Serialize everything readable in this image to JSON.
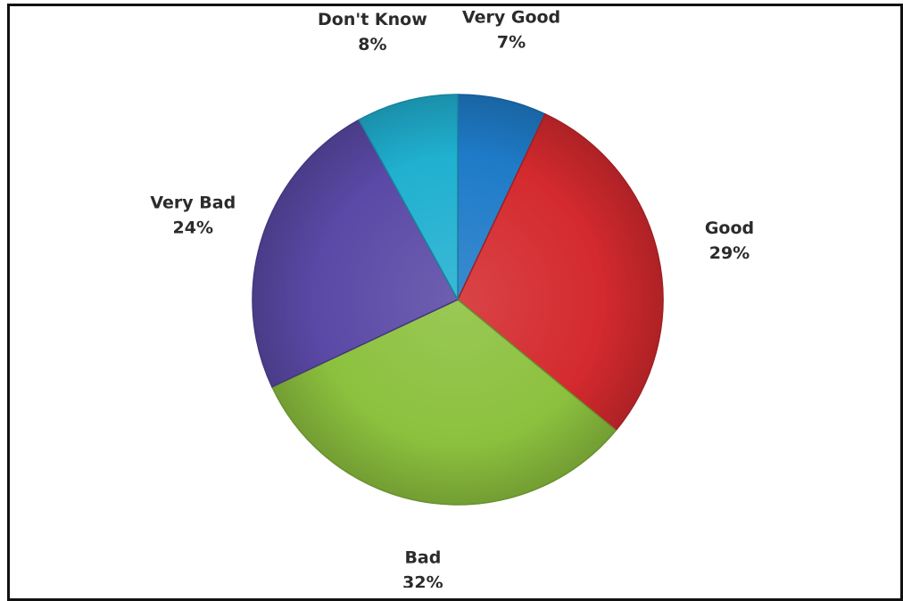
{
  "chart_data": {
    "type": "pie",
    "title": "",
    "categories": [
      "Very Good",
      "Good",
      "Bad",
      "Very Bad",
      "Don't Know"
    ],
    "values": [
      7,
      29,
      32,
      24,
      8
    ],
    "value_labels": [
      "7%",
      "29%",
      "32%",
      "24%",
      "8%"
    ],
    "unit": "%",
    "start": "12 o'clock",
    "direction": "clockwise",
    "legend": "none",
    "data_labels": "outside",
    "colors": [
      "#1f7bc8",
      "#d42a2e",
      "#8cc13e",
      "#5a49a6",
      "#20b0d0"
    ]
  }
}
